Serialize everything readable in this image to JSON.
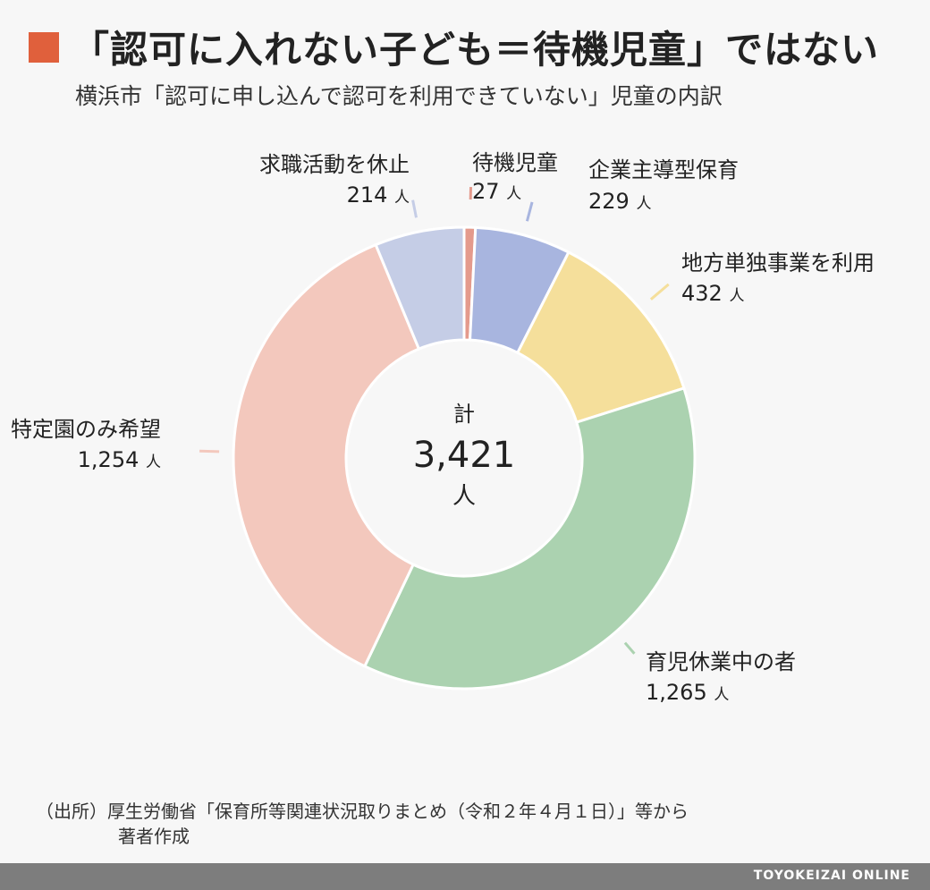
{
  "title": "「認可に入れない子ども＝待機児童」ではない",
  "subtitle": "横浜市「認可に申し込んで認可を利用できていない」児童の内訳",
  "colors": {
    "accent": "#e0603c"
  },
  "chart_data": {
    "type": "pie",
    "donut": true,
    "unit": "人",
    "center": {
      "caption": "計",
      "value": "3,421",
      "unit": "人"
    },
    "slices": [
      {
        "label": "待機児童",
        "value": 27,
        "value_text": "27",
        "color": "#e49a8c"
      },
      {
        "label": "企業主導型保育",
        "value": 229,
        "value_text": "229",
        "color": "#a8b5df"
      },
      {
        "label": "地方単独事業を利用",
        "value": 432,
        "value_text": "432",
        "color": "#f5df9b"
      },
      {
        "label": "育児休業中の者",
        "value": 1265,
        "value_text": "1,265",
        "color": "#abd2b0"
      },
      {
        "label": "特定園のみ希望",
        "value": 1254,
        "value_text": "1,254",
        "color": "#f3c8bd"
      },
      {
        "label": "求職活動を休止",
        "value": 214,
        "value_text": "214",
        "color": "#c5cde6"
      }
    ]
  },
  "source": {
    "line1": "（出所）厚生労働省「保育所等関連状況取りまとめ（令和２年４月１日）」等から",
    "line2": "著者作成"
  },
  "footer": "TOYOKEIZAI ONLINE"
}
